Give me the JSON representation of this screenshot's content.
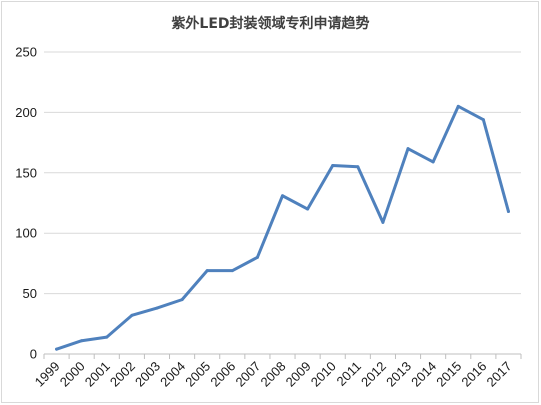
{
  "chart_data": {
    "type": "line",
    "title": "紫外LED封装领域专利申请趋势",
    "xlabel": "",
    "ylabel": "",
    "categories": [
      "1999",
      "2000",
      "2001",
      "2002",
      "2003",
      "2004",
      "2005",
      "2006",
      "2007",
      "2008",
      "2009",
      "2010",
      "2011",
      "2012",
      "2013",
      "2014",
      "2015",
      "2016",
      "2017"
    ],
    "series": [
      {
        "values": [
          4,
          11,
          14,
          32,
          38,
          45,
          69,
          69,
          80,
          131,
          120,
          156,
          155,
          109,
          170,
          159,
          205,
          194,
          118
        ]
      }
    ],
    "ylim": [
      0,
      250
    ],
    "yticks": [
      0,
      50,
      100,
      150,
      200,
      250
    ],
    "grid": true,
    "legend": "none",
    "line_color": "#4f81bd",
    "grid_color": "#d9d9d9"
  }
}
